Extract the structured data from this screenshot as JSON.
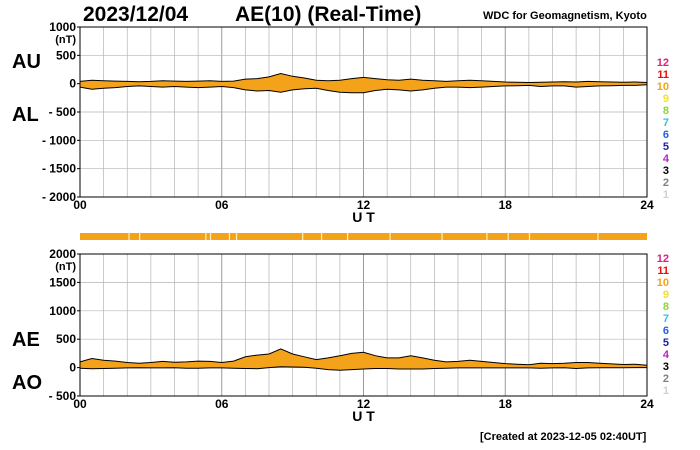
{
  "header": {
    "date": "2023/12/04",
    "title": "AE(10) (Real-Time)",
    "source": "WDC for Geomagnetism, Kyoto"
  },
  "footer": {
    "created": "[Created at 2023-12-05 02:40UT]"
  },
  "colors": {
    "fill": "#f5a21b",
    "line": "#000000",
    "grid": "#b4b4b4",
    "frame": "#000000",
    "status_bar": "#f5a21b",
    "status_gap": "#fff2b8"
  },
  "status_bar": {
    "gaps_ut_hours": [
      2.05,
      2.5,
      5.3,
      5.5,
      6.3,
      6.6,
      9.4,
      10.2,
      11.3,
      13.1,
      15.3,
      17.2,
      18.1,
      19.0,
      21.9
    ]
  },
  "legend": {
    "numbers": [
      {
        "label": "12",
        "color": "#e0207a"
      },
      {
        "label": "11",
        "color": "#e8100c"
      },
      {
        "label": "10",
        "color": "#f5a21b"
      },
      {
        "label": "9",
        "color": "#f2e02a"
      },
      {
        "label": "8",
        "color": "#8fd23a"
      },
      {
        "label": "7",
        "color": "#28c8d8"
      },
      {
        "label": "6",
        "color": "#2560e6"
      },
      {
        "label": "5",
        "color": "#2020a8"
      },
      {
        "label": "4",
        "color": "#c020c8"
      },
      {
        "label": "3",
        "color": "#000000"
      },
      {
        "label": "2",
        "color": "#808080"
      },
      {
        "label": "1",
        "color": "#d0d0d0"
      }
    ]
  },
  "chart_data": [
    {
      "type": "area",
      "title": "AE(10) (Real-Time)",
      "ylabel_unit": "(nT)",
      "upper_series_label": "AU",
      "lower_series_label": "AL",
      "xlabel": "U T",
      "x_ticks": [
        "00",
        "06",
        "12",
        "18",
        "24"
      ],
      "x_tick_values": [
        0,
        6,
        12,
        18,
        24
      ],
      "y_ticks": [
        "1000",
        "500",
        "0",
        "- 500",
        "- 1000",
        "- 1500",
        "- 2000"
      ],
      "y_tick_values": [
        1000,
        500,
        0,
        -500,
        -1000,
        -1500,
        -2000
      ],
      "xlim": [
        0,
        24
      ],
      "ylim": [
        -2000,
        1000
      ],
      "grid": true,
      "x": [
        0,
        0.5,
        1,
        1.5,
        2,
        2.5,
        3,
        3.5,
        4,
        4.5,
        5,
        5.5,
        6,
        6.5,
        7,
        7.5,
        8,
        8.5,
        9,
        9.5,
        10,
        10.5,
        11,
        11.5,
        12,
        12.5,
        13,
        13.5,
        14,
        14.5,
        15,
        15.5,
        16,
        16.5,
        17,
        17.5,
        18,
        18.5,
        19,
        19.5,
        20,
        20.5,
        21,
        21.5,
        22,
        22.5,
        23,
        23.5,
        24
      ],
      "series": [
        {
          "name": "AU",
          "values": [
            40,
            60,
            50,
            45,
            40,
            35,
            40,
            50,
            45,
            40,
            45,
            50,
            40,
            45,
            80,
            90,
            120,
            180,
            130,
            100,
            60,
            50,
            60,
            90,
            110,
            90,
            70,
            60,
            80,
            60,
            50,
            40,
            50,
            60,
            50,
            40,
            30,
            25,
            20,
            25,
            30,
            35,
            30,
            40,
            35,
            30,
            25,
            30,
            20
          ]
        },
        {
          "name": "AL",
          "values": [
            -60,
            -100,
            -80,
            -70,
            -50,
            -40,
            -50,
            -60,
            -50,
            -60,
            -70,
            -60,
            -50,
            -70,
            -110,
            -130,
            -120,
            -150,
            -110,
            -90,
            -80,
            -120,
            -150,
            -160,
            -160,
            -120,
            -100,
            -110,
            -130,
            -110,
            -80,
            -60,
            -60,
            -70,
            -60,
            -50,
            -40,
            -35,
            -30,
            -50,
            -40,
            -40,
            -60,
            -50,
            -40,
            -35,
            -30,
            -30,
            -20
          ]
        }
      ]
    },
    {
      "type": "area",
      "title": "",
      "ylabel_unit": "(nT)",
      "upper_series_label": "AE",
      "lower_series_label": "AO",
      "xlabel": "U T",
      "x_ticks": [
        "00",
        "06",
        "12",
        "18",
        "24"
      ],
      "x_tick_values": [
        0,
        6,
        12,
        18,
        24
      ],
      "y_ticks": [
        "2000",
        "1500",
        "1000",
        "500",
        "0",
        "- 500"
      ],
      "y_tick_values": [
        2000,
        1500,
        1000,
        500,
        0,
        -500
      ],
      "xlim": [
        0,
        24
      ],
      "ylim": [
        -500,
        2000
      ],
      "grid": true,
      "x": [
        0,
        0.5,
        1,
        1.5,
        2,
        2.5,
        3,
        3.5,
        4,
        4.5,
        5,
        5.5,
        6,
        6.5,
        7,
        7.5,
        8,
        8.5,
        9,
        9.5,
        10,
        10.5,
        11,
        11.5,
        12,
        12.5,
        13,
        13.5,
        14,
        14.5,
        15,
        15.5,
        16,
        16.5,
        17,
        17.5,
        18,
        18.5,
        19,
        19.5,
        20,
        20.5,
        21,
        21.5,
        22,
        22.5,
        23,
        23.5,
        24
      ],
      "series": [
        {
          "name": "AE",
          "values": [
            100,
            160,
            130,
            115,
            90,
            75,
            90,
            110,
            95,
            100,
            115,
            110,
            90,
            115,
            190,
            220,
            240,
            330,
            240,
            190,
            140,
            170,
            210,
            250,
            270,
            210,
            170,
            170,
            210,
            170,
            130,
            100,
            110,
            130,
            110,
            90,
            70,
            60,
            50,
            75,
            70,
            75,
            90,
            90,
            75,
            65,
            55,
            60,
            40
          ]
        },
        {
          "name": "AO",
          "values": [
            -10,
            -20,
            -15,
            -12,
            -5,
            -2,
            -5,
            -5,
            -2,
            -10,
            -12,
            -5,
            -5,
            -12,
            -15,
            -20,
            0,
            15,
            10,
            5,
            -10,
            -35,
            -45,
            -35,
            -25,
            -15,
            -15,
            -25,
            -25,
            -25,
            -15,
            -10,
            -5,
            -5,
            -5,
            -5,
            -5,
            -5,
            -5,
            -12,
            -5,
            -2,
            -15,
            -5,
            -2,
            -2,
            -2,
            0,
            0
          ]
        }
      ]
    }
  ]
}
